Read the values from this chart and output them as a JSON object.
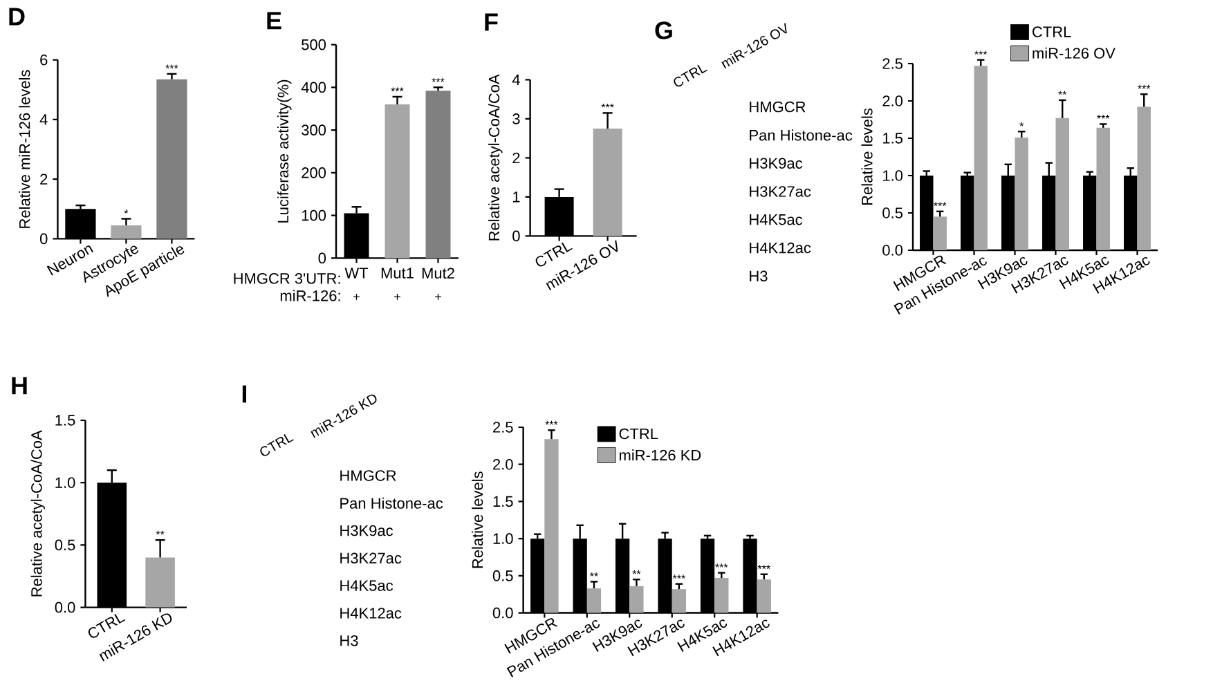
{
  "chart_data": [
    {
      "type": "bar",
      "title": "D",
      "ylabel": "Relative miR-126 levels",
      "categories": [
        "Neuron",
        "Astrocyte",
        "ApoE particle"
      ],
      "values": [
        1.0,
        0.45,
        5.35
      ],
      "errors": [
        0.12,
        0.22,
        0.18
      ],
      "colors": [
        "#000000",
        "#a6a6a6",
        "#808080"
      ],
      "ylim": [
        0,
        6
      ],
      "yticks": [
        0,
        2,
        4,
        6
      ],
      "annotations": [
        {
          "text": "*",
          "x": "Astrocyte",
          "y": 0.67
        },
        {
          "text": "***",
          "x": "ApoE particle",
          "y": 5.53
        }
      ]
    },
    {
      "type": "bar",
      "title": "E",
      "ylabel": "Luciferase activity(%)",
      "xlabel": "HMGCR 3'UTR:",
      "categories": [
        "WT",
        "Mut1",
        "Mut2"
      ],
      "values": [
        105,
        360,
        392
      ],
      "errors": [
        15,
        18,
        8
      ],
      "colors": [
        "#000000",
        "#a6a6a6",
        "#808080"
      ],
      "ylim": [
        0,
        500
      ],
      "yticks": [
        0,
        100,
        200,
        300,
        400,
        500
      ],
      "annotations": [
        {
          "text": "***",
          "x": "Mut1",
          "y": 378
        },
        {
          "text": "***",
          "x": "Mut2",
          "y": 400
        },
        "miR-126:",
        "+",
        "+",
        "+"
      ]
    },
    {
      "type": "bar",
      "title": "F",
      "ylabel": "Relative acetyl-CoA/CoA",
      "categories": [
        "CTRL",
        "miR-126 OV"
      ],
      "values": [
        1.0,
        2.75
      ],
      "errors": [
        0.2,
        0.4
      ],
      "colors": [
        "#000000",
        "#a6a6a6"
      ],
      "ylim": [
        0,
        4
      ],
      "yticks": [
        0,
        1,
        2,
        3,
        4
      ],
      "annotations": [
        {
          "text": "***",
          "x": "miR-126 OV",
          "y": 3.15
        }
      ]
    },
    {
      "type": "other",
      "title": "G",
      "categories": [
        "CTRL",
        "miR-126 OV"
      ],
      "y_categories": [
        "HMGCR",
        "Pan Histone-ac",
        "H3K9ac",
        "H3K27ac",
        "H4K5ac",
        "H4K12ac",
        "H3"
      ]
    },
    {
      "type": "bar",
      "ylabel": "Relative levels",
      "categories": [
        "HMGCR",
        "Pan Histone-ac",
        "H3K9ac",
        "H3K27ac",
        "H4K5ac",
        "H4K12ac"
      ],
      "series": [
        {
          "name": "CTRL",
          "color": "#000000",
          "values": [
            1.0,
            1.0,
            1.0,
            1.0,
            1.0,
            1.0
          ],
          "errors": [
            0.06,
            0.04,
            0.15,
            0.17,
            0.05,
            0.1
          ]
        },
        {
          "name": "miR-126 OV",
          "color": "#a6a6a6",
          "values": [
            0.45,
            2.47,
            1.51,
            1.77,
            1.64,
            1.92
          ],
          "errors": [
            0.07,
            0.08,
            0.08,
            0.24,
            0.05,
            0.17
          ]
        }
      ],
      "ylim": [
        0,
        2.5
      ],
      "yticks": [
        {
          "value": 0,
          "label": "0.0"
        },
        0.5,
        {
          "value": 1,
          "label": "1.0"
        },
        1.5,
        {
          "value": 2,
          "label": "2.0"
        },
        2.5
      ],
      "legend": "top right",
      "annotations": [
        {
          "text": "***",
          "x": "HMGCR",
          "y": 0.52
        },
        {
          "text": "***",
          "x": "Pan Histone-ac",
          "y": 2.55
        },
        {
          "text": "*",
          "x": "H3K9ac",
          "y": 1.59
        },
        {
          "text": "**",
          "x": "H3K27ac",
          "y": 2.01
        },
        {
          "text": "***",
          "x": "H4K5ac",
          "y": 1.69
        },
        {
          "text": "***",
          "x": "H4K12ac",
          "y": 2.09
        }
      ]
    },
    {
      "type": "bar",
      "title": "H",
      "ylabel": "Relative acetyl-CoA/CoA",
      "categories": [
        "CTRL",
        "miR-126 KD"
      ],
      "values": [
        1.0,
        0.4
      ],
      "errors": [
        0.1,
        0.14
      ],
      "colors": [
        "#000000",
        "#a6a6a6"
      ],
      "ylim": [
        0,
        1.5
      ],
      "yticks": [
        {
          "value": 0,
          "label": "0.0"
        },
        0.5,
        {
          "value": 1,
          "label": "1.0"
        },
        1.5
      ],
      "annotations": [
        {
          "text": "**",
          "x": "miR-126 KD",
          "y": 0.54
        }
      ]
    },
    {
      "type": "other",
      "title": "I",
      "categories": [
        "CTRL",
        "miR-126 KD"
      ],
      "y_categories": [
        "HMGCR",
        "Pan Histone-ac",
        "H3K9ac",
        "H3K27ac",
        "H4K5ac",
        "H4K12ac",
        "H3"
      ]
    },
    {
      "type": "bar",
      "ylabel": "Relative levels",
      "categories": [
        "HMGCR",
        "Pan Histone-ac",
        "H3K9ac",
        "H3K27ac",
        "H4K5ac",
        "H4K12ac"
      ],
      "series": [
        {
          "name": "CTRL",
          "color": "#000000",
          "values": [
            1.0,
            1.0,
            1.0,
            1.0,
            1.0,
            1.0
          ],
          "errors": [
            0.06,
            0.18,
            0.2,
            0.08,
            0.04,
            0.04
          ]
        },
        {
          "name": "miR-126 KD",
          "color": "#a6a6a6",
          "values": [
            2.34,
            0.33,
            0.36,
            0.32,
            0.47,
            0.45
          ],
          "errors": [
            0.12,
            0.09,
            0.09,
            0.07,
            0.07,
            0.07
          ]
        }
      ],
      "ylim": [
        0,
        2.5
      ],
      "yticks": [
        {
          "value": 0,
          "label": "0.0"
        },
        0.5,
        {
          "value": 1,
          "label": "1.0"
        },
        1.5,
        {
          "value": 2,
          "label": "2.0"
        },
        2.5
      ],
      "legend": "top",
      "annotations": [
        {
          "text": "***",
          "x": "HMGCR",
          "y": 2.46
        },
        {
          "text": "**",
          "x": "Pan Histone-ac",
          "y": 0.42
        },
        {
          "text": "**",
          "x": "H3K9ac",
          "y": 0.45
        },
        {
          "text": "***",
          "x": "H3K27ac",
          "y": 0.39
        },
        {
          "text": "***",
          "x": "H4K5ac",
          "y": 0.54
        },
        {
          "text": "***",
          "x": "H4K12ac",
          "y": 0.52
        }
      ]
    }
  ]
}
